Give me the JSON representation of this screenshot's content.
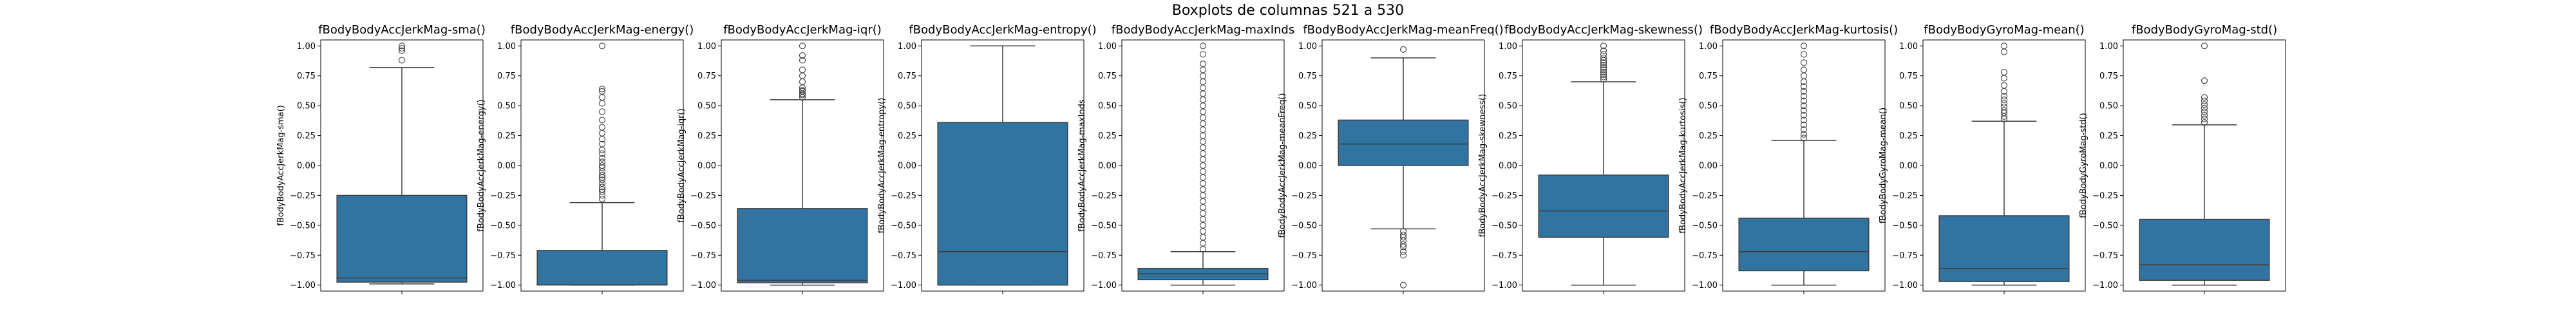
{
  "figure": {
    "title": "Boxplots de columnas 521 a 530"
  },
  "colors": {
    "box": "#3274a1",
    "line": "#3f3f3f",
    "axis": "#000000",
    "background": "#ffffff"
  },
  "chart_data": [
    {
      "type": "box",
      "title": "fBodyBodyAccJerkMag-sma()",
      "ylabel": "fBodyBodyAccJerkMag-sma()",
      "yticks": [
        1.0,
        0.75,
        0.5,
        0.25,
        0.0,
        -0.25,
        -0.5,
        -0.75,
        -1.0
      ],
      "ylim": [
        -1.05,
        1.05
      ],
      "whisker_low": -0.99,
      "q1": -0.975,
      "median": -0.94,
      "q3": -0.25,
      "whisker_high": 0.82,
      "outliers": [
        0.88,
        0.96,
        0.98,
        1.0
      ]
    },
    {
      "type": "box",
      "title": "fBodyBodyAccJerkMag-energy()",
      "ylabel": "fBodyBodyAccJerkMag-energy()",
      "yticks": [
        1.0,
        0.75,
        0.5,
        0.25,
        0.0,
        -0.25,
        -0.5,
        -0.75,
        -1.0
      ],
      "ylim": [
        -1.05,
        1.05
      ],
      "whisker_low": -1.0,
      "q1": -0.999,
      "median": -0.998,
      "q3": -0.71,
      "whisker_high": -0.31,
      "outliers": [
        -0.28,
        -0.25,
        -0.22,
        -0.2,
        -0.18,
        -0.15,
        -0.12,
        -0.1,
        -0.08,
        -0.05,
        -0.02,
        0.0,
        0.03,
        0.06,
        0.1,
        0.13,
        0.18,
        0.22,
        0.27,
        0.32,
        0.38,
        0.45,
        0.52,
        0.57,
        0.62,
        0.64,
        1.0
      ]
    },
    {
      "type": "box",
      "title": "fBodyBodyAccJerkMag-iqr()",
      "ylabel": "fBodyBodyAccJerkMag-iqr()",
      "yticks": [
        1.0,
        0.75,
        0.5,
        0.25,
        0.0,
        -0.25,
        -0.5,
        -0.75,
        -1.0
      ],
      "ylim": [
        -1.05,
        1.05
      ],
      "whisker_low": -1.0,
      "q1": -0.98,
      "median": -0.96,
      "q3": -0.36,
      "whisker_high": 0.55,
      "outliers": [
        0.57,
        0.59,
        0.6,
        0.62,
        0.63,
        0.65,
        0.7,
        0.75,
        0.8,
        0.88,
        0.92,
        1.0
      ]
    },
    {
      "type": "box",
      "title": "fBodyBodyAccJerkMag-entropy()",
      "ylabel": "fBodyBodyAccJerkMag-entropy()",
      "yticks": [
        1.0,
        0.75,
        0.5,
        0.25,
        0.0,
        -0.25,
        -0.5,
        -0.75,
        -1.0
      ],
      "ylim": [
        -1.05,
        1.05
      ],
      "whisker_low": -1.0,
      "q1": -1.0,
      "median": -0.72,
      "q3": 0.36,
      "whisker_high": 1.0,
      "outliers": []
    },
    {
      "type": "box",
      "title": "fBodyBodyAccJerkMag-maxInds",
      "ylabel": "fBodyBodyAccJerkMag-maxInds",
      "yticks": [
        1.0,
        0.75,
        0.5,
        0.25,
        0.0,
        -0.25,
        -0.5,
        -0.75,
        -1.0
      ],
      "ylim": [
        -1.05,
        1.05
      ],
      "whisker_low": -1.0,
      "q1": -0.955,
      "median": -0.905,
      "q3": -0.86,
      "whisker_high": -0.72,
      "outliers": [
        -0.7,
        -0.65,
        -0.6,
        -0.55,
        -0.5,
        -0.45,
        -0.4,
        -0.35,
        -0.3,
        -0.25,
        -0.2,
        -0.15,
        -0.1,
        -0.05,
        0.0,
        0.05,
        0.1,
        0.15,
        0.2,
        0.25,
        0.3,
        0.35,
        0.4,
        0.45,
        0.5,
        0.55,
        0.6,
        0.65,
        0.7,
        0.75,
        0.8,
        0.85,
        0.93,
        1.0
      ]
    },
    {
      "type": "box",
      "title": "fBodyBodyAccJerkMag-meanFreq()",
      "ylabel": "fBodyBodyAccJerkMag-meanFreq()",
      "yticks": [
        1.0,
        0.75,
        0.5,
        0.25,
        0.0,
        -0.25,
        -0.5,
        -0.75,
        -1.0
      ],
      "ylim": [
        -1.05,
        1.05
      ],
      "whisker_low": -0.53,
      "q1": 0.0,
      "median": 0.18,
      "q3": 0.38,
      "whisker_high": 0.9,
      "outliers": [
        0.97,
        -0.55,
        -0.58,
        -0.6,
        -0.63,
        -0.66,
        -0.68,
        -0.72,
        -0.75,
        -1.0
      ]
    },
    {
      "type": "box",
      "title": "fBodyBodyAccJerkMag-skewness()",
      "ylabel": "fBodyBodyAccJerkMag-skewness()",
      "yticks": [
        1.0,
        0.75,
        0.5,
        0.25,
        0.0,
        -0.25,
        -0.5,
        -0.75,
        -1.0
      ],
      "ylim": [
        -1.05,
        1.05
      ],
      "whisker_low": -1.0,
      "q1": -0.6,
      "median": -0.38,
      "q3": -0.08,
      "whisker_high": 0.7,
      "outliers": [
        0.72,
        0.74,
        0.76,
        0.78,
        0.8,
        0.82,
        0.84,
        0.86,
        0.88,
        0.9,
        0.93,
        0.96,
        1.0
      ]
    },
    {
      "type": "box",
      "title": "fBodyBodyAccJerkMag-kurtosis()",
      "ylabel": "fBodyBodyAccJerkMag-kurtosis()",
      "yticks": [
        1.0,
        0.75,
        0.5,
        0.25,
        0.0,
        -0.25,
        -0.5,
        -0.75,
        -1.0
      ],
      "ylim": [
        -1.05,
        1.05
      ],
      "whisker_low": -1.0,
      "q1": -0.88,
      "median": -0.72,
      "q3": -0.44,
      "whisker_high": 0.21,
      "outliers": [
        0.23,
        0.26,
        0.3,
        0.34,
        0.38,
        0.42,
        0.46,
        0.5,
        0.54,
        0.58,
        0.62,
        0.66,
        0.7,
        0.75,
        0.8,
        0.86,
        0.93,
        1.0
      ]
    },
    {
      "type": "box",
      "title": "fBodyBodyGyroMag-mean()",
      "ylabel": "fBodyBodyGyroMag-mean()",
      "yticks": [
        1.0,
        0.75,
        0.5,
        0.25,
        0.0,
        -0.25,
        -0.5,
        -0.75,
        -1.0
      ],
      "ylim": [
        -1.05,
        1.05
      ],
      "whisker_low": -1.0,
      "q1": -0.97,
      "median": -0.86,
      "q3": -0.42,
      "whisker_high": 0.37,
      "outliers": [
        0.39,
        0.41,
        0.44,
        0.46,
        0.49,
        0.52,
        0.55,
        0.58,
        0.62,
        0.67,
        0.73,
        0.78,
        0.95,
        1.0
      ]
    },
    {
      "type": "box",
      "title": "fBodyBodyGyroMag-std()",
      "ylabel": "fBodyBodyGyroMag-std()",
      "yticks": [
        1.0,
        0.75,
        0.5,
        0.25,
        0.0,
        -0.25,
        -0.5,
        -0.75,
        -1.0
      ],
      "ylim": [
        -1.05,
        1.05
      ],
      "whisker_low": -1.0,
      "q1": -0.96,
      "median": -0.83,
      "q3": -0.45,
      "whisker_high": 0.34,
      "outliers": [
        0.36,
        0.39,
        0.42,
        0.45,
        0.48,
        0.51,
        0.54,
        0.57,
        0.71,
        1.0
      ]
    }
  ]
}
